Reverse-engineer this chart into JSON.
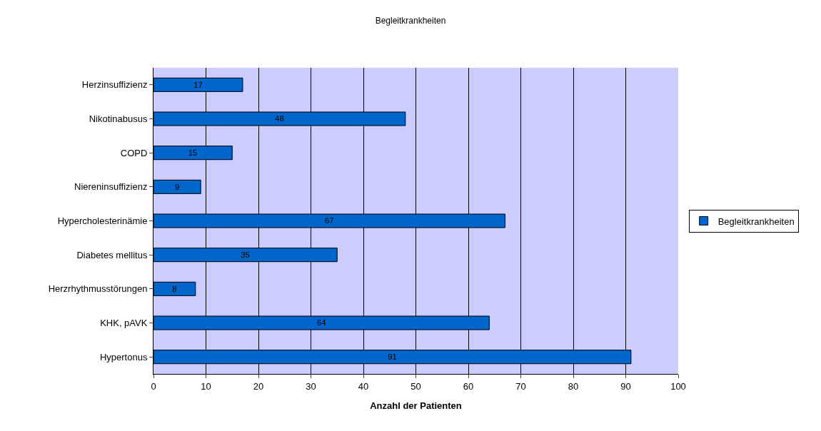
{
  "chart_data": {
    "type": "bar",
    "orientation": "horizontal",
    "title": "Begleitkrankheiten",
    "xlabel": "Anzahl der Patienten",
    "categories": [
      "Herzinsuffizienz",
      "Nikotinabusus",
      "COPD",
      "Niereninsuffizienz",
      "Hypercholesterinämie",
      "Diabetes mellitus",
      "Herzrhythmusstörungen",
      "KHK, pAVK",
      "Hypertonus"
    ],
    "series": [
      {
        "name": "Begleitkrankheiten",
        "color": "#0066cc",
        "values": [
          17,
          48,
          15,
          9,
          67,
          35,
          8,
          64,
          91
        ]
      }
    ],
    "xlim": [
      0,
      100
    ],
    "xticks": [
      0,
      10,
      20,
      30,
      40,
      50,
      60,
      70,
      80,
      90,
      100
    ],
    "grid": "x",
    "legend": "right",
    "data_labels": true
  }
}
